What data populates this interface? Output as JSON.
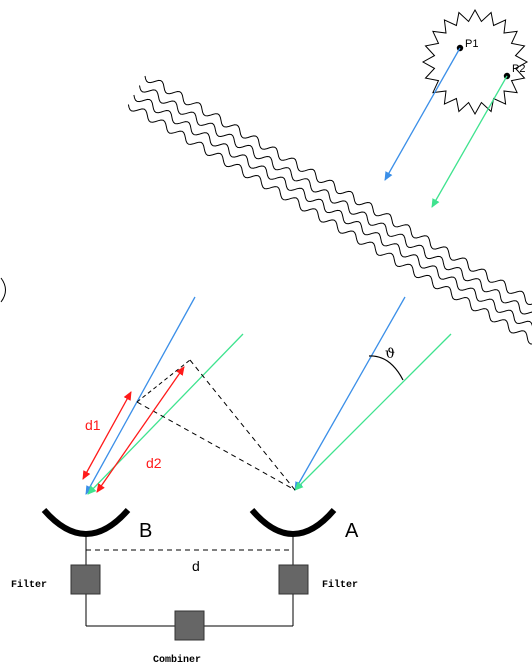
{
  "labels": {
    "p1": "P1",
    "p2": "P2",
    "theta": "ϑ",
    "d1": "d1",
    "d2": "d2",
    "telescope_b": "B",
    "telescope_a": "A",
    "baseline": "d",
    "filter_left": "Filter",
    "filter_right": "Filter",
    "combiner": "Combiner"
  },
  "colors": {
    "ray_p1": "#3b8fe8",
    "ray_p2": "#3fe38f",
    "path_difference": "#ff1a1a",
    "box": "#666666",
    "line": "#000000"
  }
}
